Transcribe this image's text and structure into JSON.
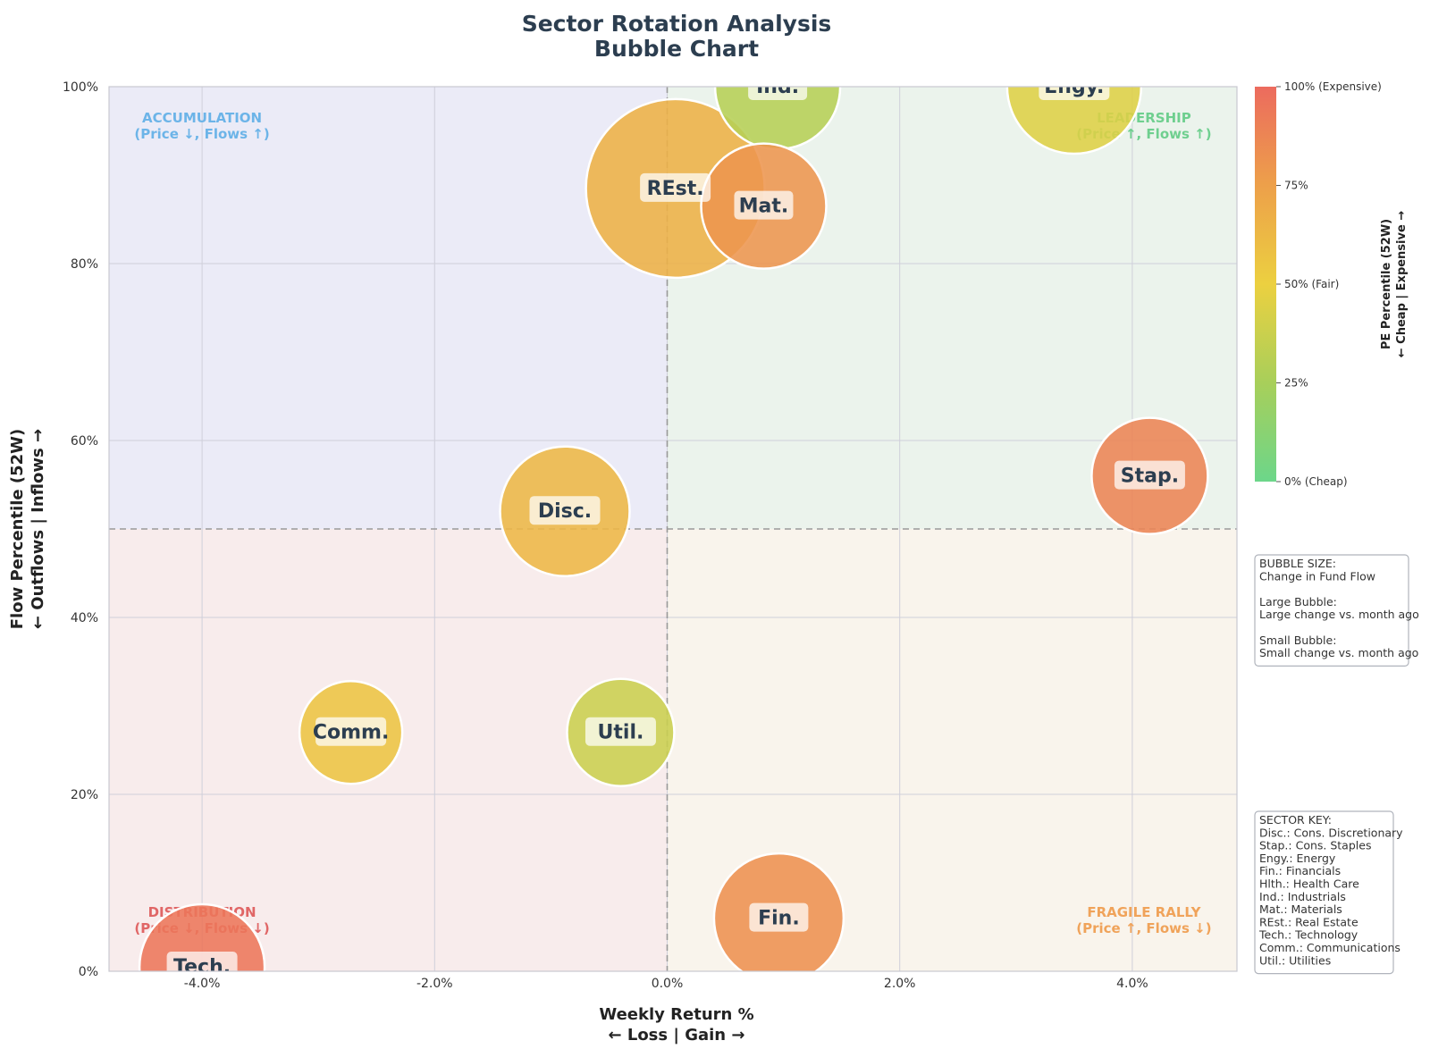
{
  "chart_data": {
    "type": "scatter",
    "title": "Sector Rotation Analysis",
    "subtitle": "Bubble Chart",
    "xlabel": "Weekly Return %",
    "xlabel_sub": "← Loss | Gain →",
    "ylabel": "Flow Percentile (52W)",
    "ylabel_sub": "← Outflows | Inflows →",
    "xlim": [
      -4.8,
      4.9
    ],
    "ylim": [
      0,
      100
    ],
    "x_ticks": [
      -4,
      -2,
      0,
      2,
      4
    ],
    "x_tick_labels": [
      "-4.0%",
      "-2.0%",
      "0.0%",
      "2.0%",
      "4.0%"
    ],
    "y_ticks": [
      0,
      20,
      40,
      60,
      80,
      100
    ],
    "y_tick_labels": [
      "0%",
      "20%",
      "40%",
      "60%",
      "80%",
      "100%"
    ],
    "grid": true,
    "reference_lines": {
      "x": 0,
      "y": 50
    },
    "quadrants": [
      {
        "name": "ACCUMULATION",
        "desc": "(Price ↓, Flows ↑)",
        "color": "#6cb4e8",
        "fill": "#ebebf7",
        "position": "top-left"
      },
      {
        "name": "LEADERSHIP",
        "desc": "(Price ↑, Flows ↑)",
        "color": "#6fcf8f",
        "fill": "#ebf3ec",
        "position": "top-right"
      },
      {
        "name": "DISTRIBUTION",
        "desc": "(Price ↓, Flows ↓)",
        "color": "#e06666",
        "fill": "#f8ecec",
        "position": "bottom-left"
      },
      {
        "name": "FRAGILE RALLY",
        "desc": "(Price ↑, Flows ↓)",
        "color": "#f0a35a",
        "fill": "#f9f4ec",
        "position": "bottom-right"
      }
    ],
    "points": [
      {
        "label": "Ind.",
        "x": 0.95,
        "y": 100,
        "pe_percentile": 30,
        "size": 1.4
      },
      {
        "label": "Engy.",
        "x": 3.5,
        "y": 100,
        "pe_percentile": 45,
        "size": 1.5
      },
      {
        "label": "REst.",
        "x": 0.07,
        "y": 88.5,
        "pe_percentile": 66,
        "size": 2.0
      },
      {
        "label": "Mat.",
        "x": 0.83,
        "y": 86.5,
        "pe_percentile": 80,
        "size": 1.4
      },
      {
        "label": "Disc.",
        "x": -0.88,
        "y": 52,
        "pe_percentile": 63,
        "size": 1.45
      },
      {
        "label": "Stap.",
        "x": 4.15,
        "y": 56,
        "pe_percentile": 88,
        "size": 1.3
      },
      {
        "label": "Comm.",
        "x": -2.72,
        "y": 27,
        "pe_percentile": 56,
        "size": 1.15
      },
      {
        "label": "Util.",
        "x": -0.4,
        "y": 27,
        "pe_percentile": 37,
        "size": 1.2
      },
      {
        "label": "Fin.",
        "x": 0.96,
        "y": 6,
        "pe_percentile": 82,
        "size": 1.45
      },
      {
        "label": "Tech.",
        "x": -4.0,
        "y": 0.5,
        "pe_percentile": 95,
        "size": 1.4
      }
    ],
    "colorbar": {
      "title": "PE Percentile (52W)",
      "subtitle": "← Cheap | Expensive →",
      "tick_values": [
        100,
        75,
        50,
        25,
        0
      ],
      "tick_labels": [
        "100% (Expensive)",
        "75%",
        "50% (Fair)",
        "25%",
        "0% (Cheap)"
      ],
      "colors": [
        "#6cd68a",
        "#a8cf5a",
        "#ecd040",
        "#eda04a",
        "#ec6b5e"
      ]
    },
    "annotations": {
      "bubble_size": [
        "BUBBLE SIZE:",
        "Change in Fund Flow",
        "",
        "Large Bubble:",
        "Large change vs. month ago",
        "",
        "Small Bubble:",
        "Small change vs. month ago"
      ],
      "sector_key": [
        "SECTOR KEY:",
        "Disc.: Cons. Discretionary",
        "Stap.: Cons. Staples",
        "Engy.: Energy",
        "Fin.: Financials",
        "Hlth.: Health Care",
        "Ind.: Industrials",
        "Mat.: Materials",
        "REst.: Real Estate",
        "Tech.: Technology",
        "Comm.: Communications",
        "Util.: Utilities"
      ]
    }
  }
}
